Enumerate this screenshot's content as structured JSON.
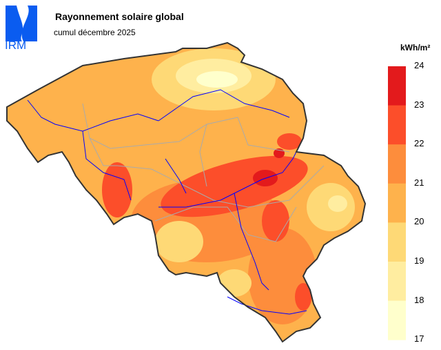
{
  "header": {
    "logo_text": "IRM",
    "title": "Rayonnement solaire global",
    "subtitle": "cumul décembre 2025"
  },
  "legend": {
    "unit": "kWh/m²",
    "ticks": [
      "24",
      "23",
      "22",
      "21",
      "20",
      "19",
      "18",
      "17"
    ],
    "bins": [
      {
        "range": "23-24",
        "color": "#e31a1c"
      },
      {
        "range": "22-23",
        "color": "#fc4e2a"
      },
      {
        "range": "21-22",
        "color": "#fd8d3c"
      },
      {
        "range": "20-21",
        "color": "#feb24c"
      },
      {
        "range": "19-20",
        "color": "#fed976"
      },
      {
        "range": "18-19",
        "color": "#ffeda0"
      },
      {
        "range": "17-18",
        "color": "#ffffcc"
      }
    ]
  },
  "map": {
    "region": "Belgium",
    "border_color": "#333333",
    "river_color": "#0000ff",
    "province_line_color": "#aaaaaa"
  }
}
